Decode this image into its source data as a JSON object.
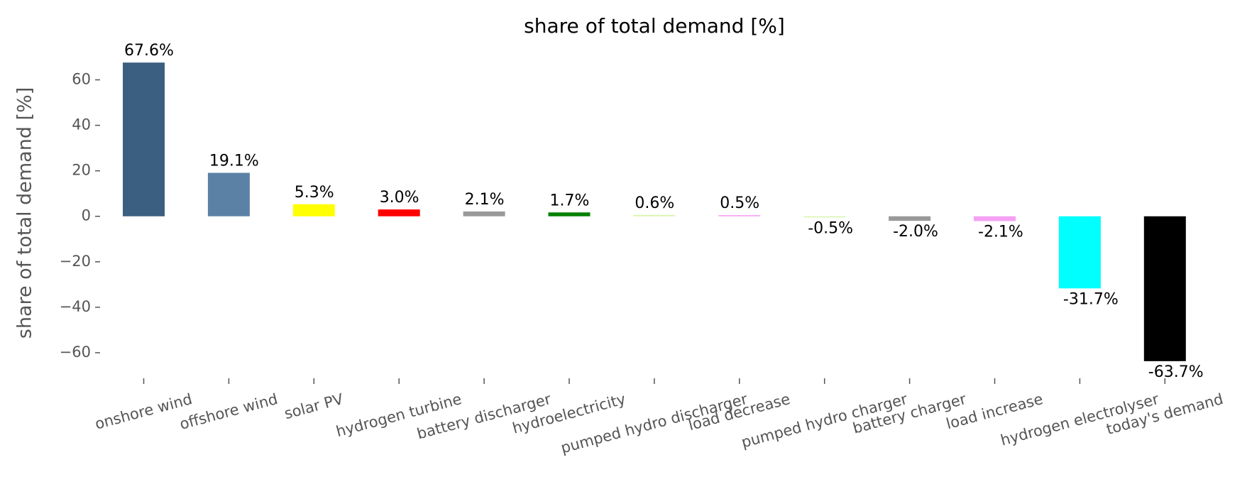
{
  "chart_data": {
    "type": "bar",
    "title": "share of total demand [%]",
    "ylabel": "share of total demand [%]",
    "categories": [
      "onshore wind",
      "offshore wind",
      "solar PV",
      "hydrogen turbine",
      "battery discharger",
      "hydroelectricity",
      "pumped hydro discharger",
      "load decrease",
      "pumped hydro charger",
      "battery charger",
      "load increase",
      "hydrogen electrolyser",
      "today's demand"
    ],
    "values": [
      67.6,
      19.1,
      5.3,
      3.0,
      2.1,
      1.7,
      0.6,
      0.5,
      -0.5,
      -2.0,
      -2.1,
      -31.7,
      -63.7
    ],
    "value_labels": [
      "67.6%",
      "19.1%",
      "5.3%",
      "3.0%",
      "2.1%",
      "1.7%",
      "0.6%",
      "0.5%",
      "-0.5%",
      "-2.0%",
      "-2.1%",
      "-31.7%",
      "-63.7%"
    ],
    "colors": [
      "#3b5f80",
      "#5b82a5",
      "#ffff00",
      "#ff0000",
      "#999999",
      "#008000",
      "#d9f5b0",
      "#f5a0f5",
      "#d9f5b0",
      "#999999",
      "#f5a0f5",
      "#00ffff",
      "#000000"
    ],
    "ylim": [
      -70.3,
      74.2
    ],
    "yticks": [
      {
        "value": -60,
        "label": "−60"
      },
      {
        "value": -40,
        "label": "−40"
      },
      {
        "value": -20,
        "label": "−20"
      },
      0,
      20,
      40,
      60
    ]
  }
}
